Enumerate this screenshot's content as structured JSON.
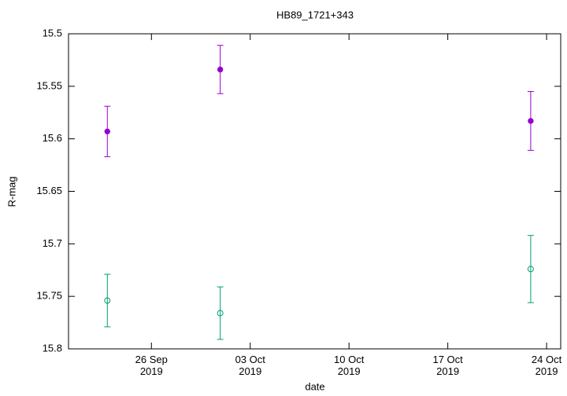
{
  "chart_data": {
    "type": "errorbar",
    "title": "HB89_1721+343",
    "xlabel": "date",
    "ylabel": "R-mag",
    "x": [
      "2019-09-22T21:00",
      "2019-09-30T21:00",
      "2019-10-22T21:00"
    ],
    "series": [
      {
        "color": "#9400d3",
        "marker": "filled-circle",
        "values": [
          15.593,
          15.534,
          15.583
        ],
        "errors": [
          0.024,
          0.023,
          0.028
        ]
      },
      {
        "color": "#009e73",
        "marker": "open-circle",
        "values": [
          15.754,
          15.766,
          15.724
        ],
        "errors": [
          0.025,
          0.025,
          0.032
        ]
      }
    ],
    "xlim": [
      "2019-09-20T03:00",
      "2019-10-25T00:00"
    ],
    "xticks": [
      {
        "value": "2019-09-26",
        "label": "26 Sep\n2019"
      },
      {
        "value": "2019-10-03",
        "label": "03 Oct\n2019"
      },
      {
        "value": "2019-10-10",
        "label": "10 Oct\n2019"
      },
      {
        "value": "2019-10-17",
        "label": "17 Oct\n2019"
      },
      {
        "value": "2019-10-24",
        "label": "24 Oct\n2019"
      }
    ],
    "ylim": [
      15.8,
      15.5
    ],
    "yticks": [
      15.5,
      15.55,
      15.6,
      15.65,
      15.7,
      15.75,
      15.8
    ],
    "grid": false
  }
}
